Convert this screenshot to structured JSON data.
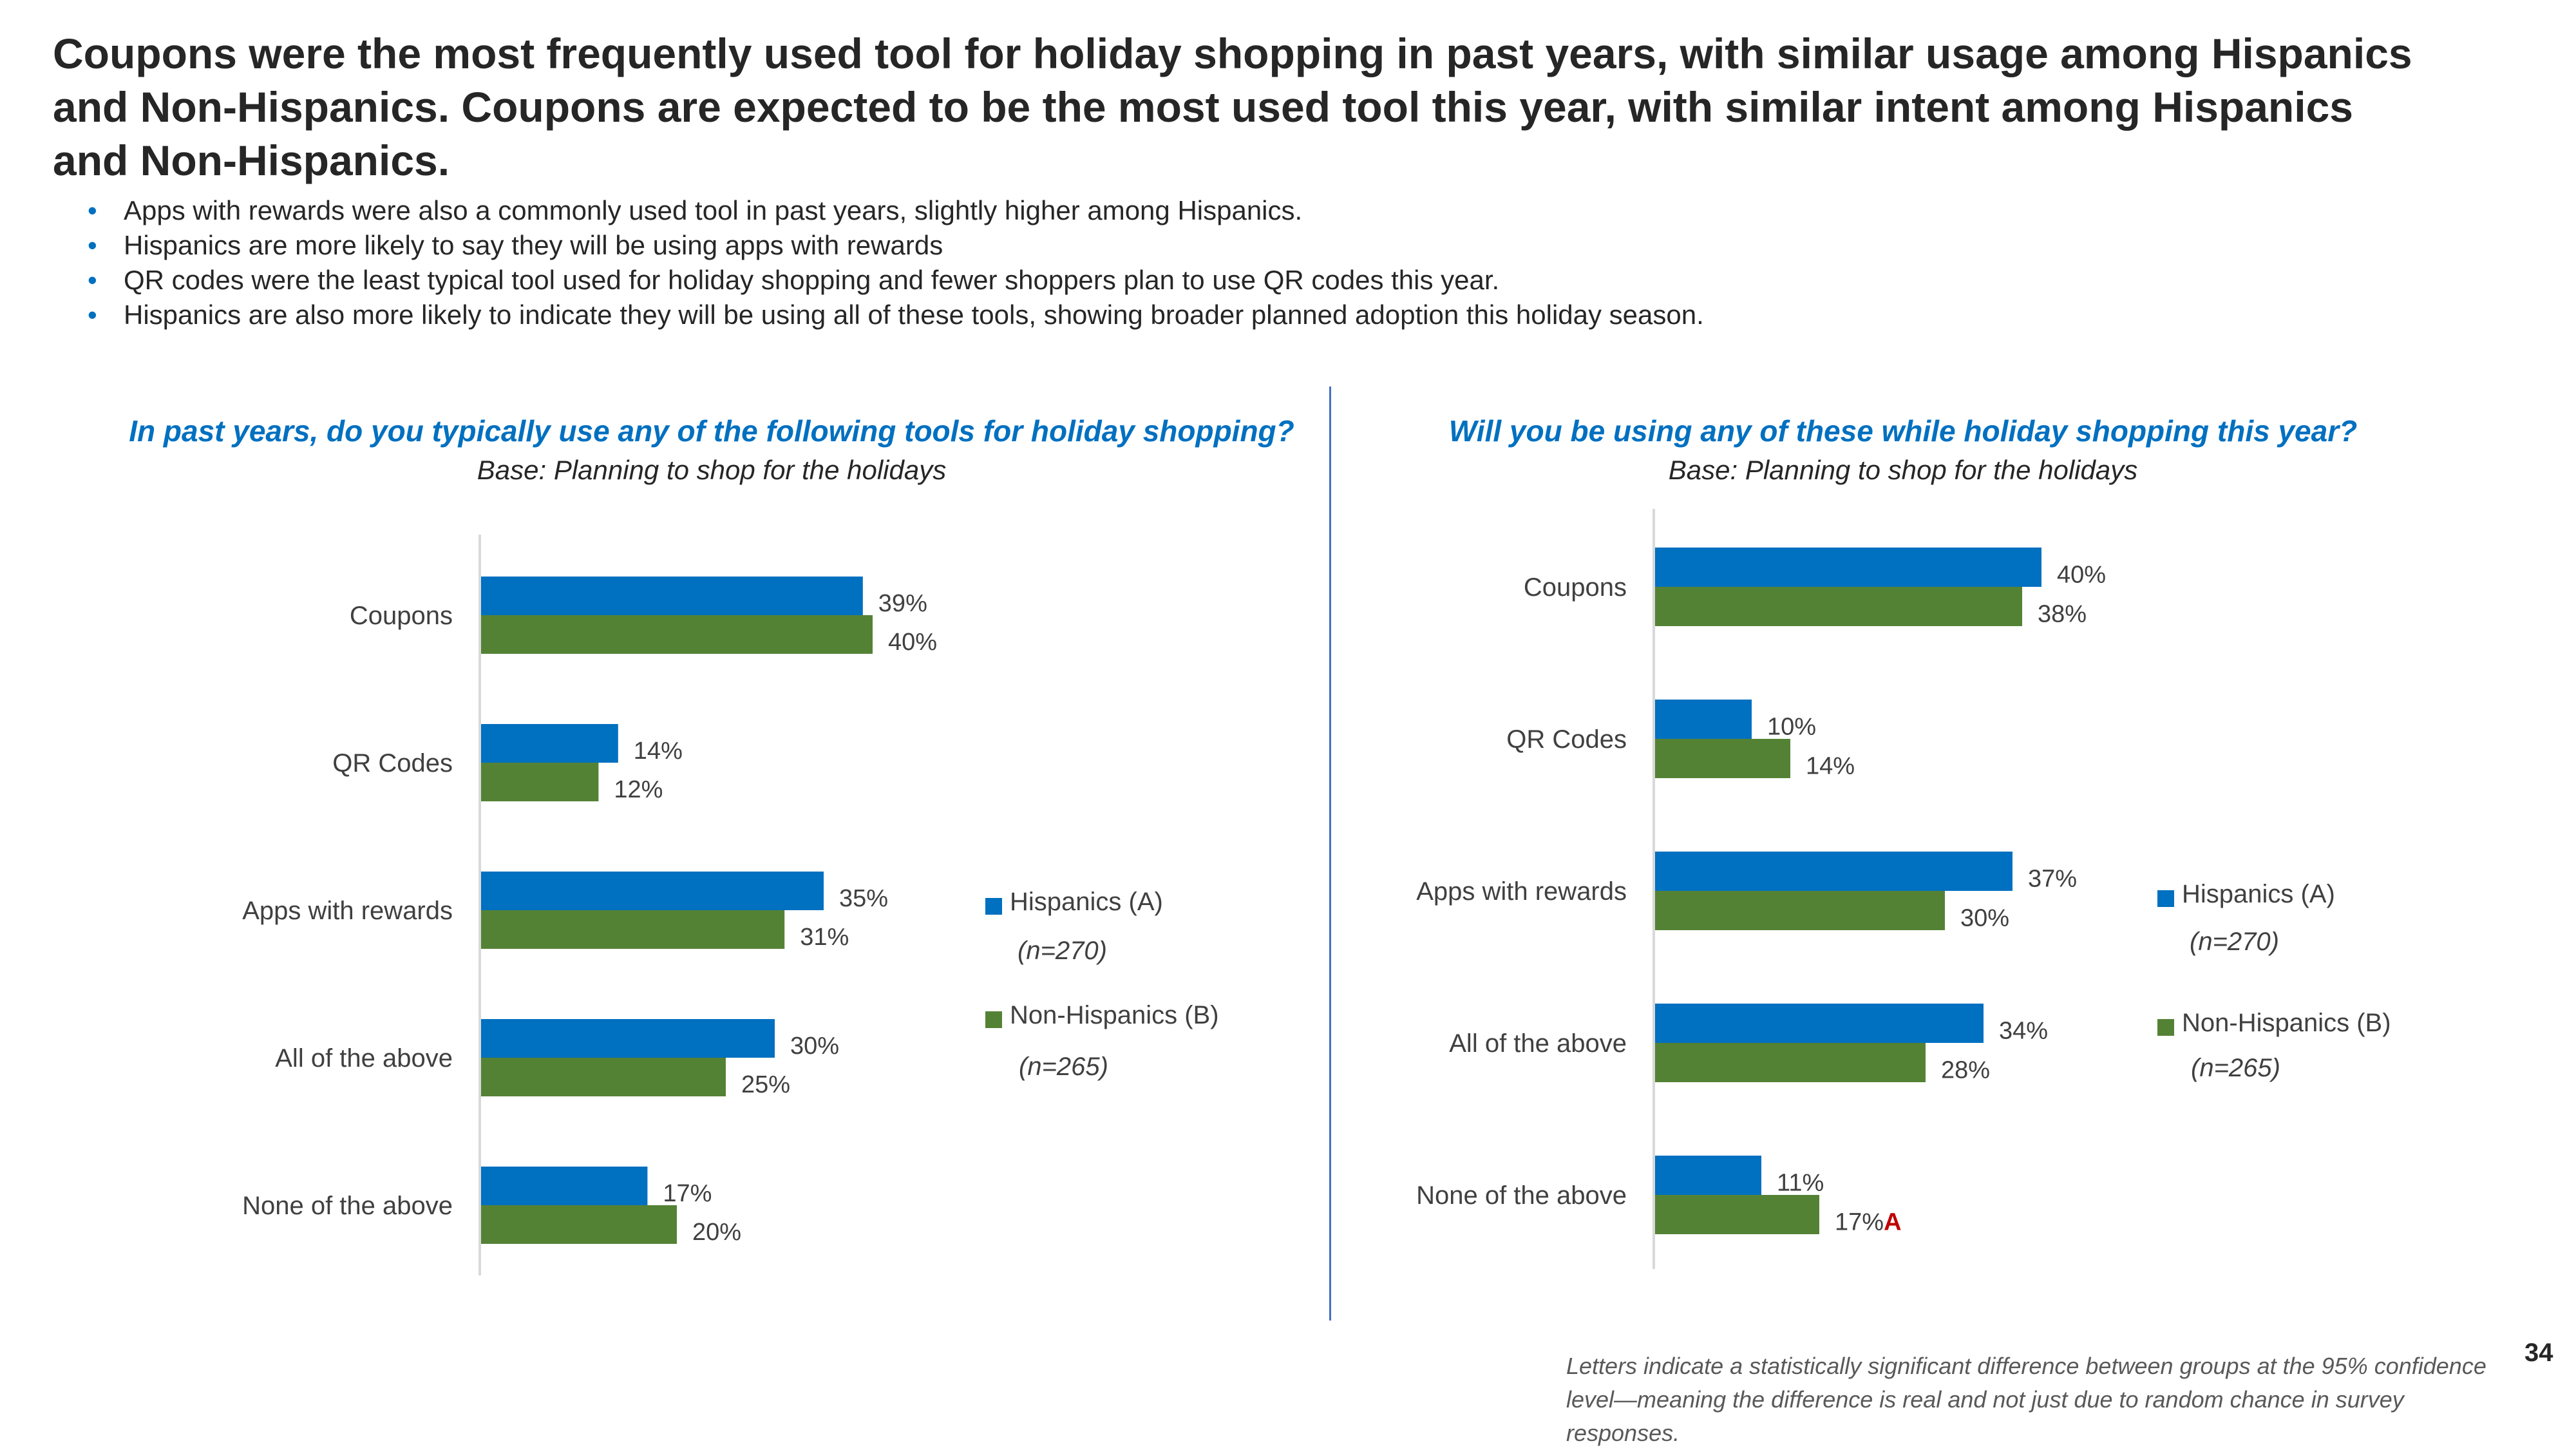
{
  "headline": "Coupons were the most frequently used tool for holiday shopping in past years, with similar usage among Hispanics and Non-Hispanics. Coupons are expected to be the most used tool this year, with similar intent among Hispanics and Non-Hispanics.",
  "bullets": [
    "Apps with rewards were also a commonly used tool in past years, slightly higher among Hispanics.",
    "Hispanics are more likely to say they will be using apps with rewards",
    "QR codes were the least typical tool used for holiday shopping and fewer shoppers plan to use QR codes this year.",
    "Hispanics are also more likely to indicate they will be using all of these tools, showing broader planned adoption this holiday season."
  ],
  "colors": {
    "hispanics": "#0070C0",
    "non_hispanics": "#548235",
    "significance": "#C00000",
    "title_blue": "#0070C0",
    "divider": "#4472C4"
  },
  "legend": {
    "series_a_label": "Hispanics (A)",
    "series_a_n": "(n=270)",
    "series_b_label": "Non-Hispanics (B)",
    "series_b_n": "(n=265)"
  },
  "footnote": "Letters indicate a statistically significant difference between groups at the 95% confidence level—meaning the difference is real and not just due to random chance in survey responses.",
  "page_number": "34",
  "chart_data": [
    {
      "type": "bar",
      "orientation": "horizontal",
      "title": "In past years, do you typically use any of the following tools for holiday shopping?",
      "subtitle": "Base: Planning to shop for the holidays",
      "categories": [
        "Coupons",
        "QR Codes",
        "Apps with rewards",
        "All of the above",
        "None of the above"
      ],
      "series": [
        {
          "name": "Hispanics (A)",
          "n": "(n=270)",
          "values": [
            39,
            14,
            35,
            30,
            17
          ],
          "labels": [
            "39%",
            "14%",
            "35%",
            "30%",
            "17%"
          ],
          "sig": [
            "",
            "",
            "",
            "",
            ""
          ]
        },
        {
          "name": "Non-Hispanics (B)",
          "n": "(n=265)",
          "values": [
            40,
            12,
            31,
            25,
            20
          ],
          "labels": [
            "40%",
            "12%",
            "31%",
            "25%",
            "20%"
          ],
          "sig": [
            "",
            "",
            "",
            "",
            ""
          ]
        }
      ],
      "xlim": [
        0,
        100
      ],
      "unit": "%",
      "grid": false,
      "legend_position": "right"
    },
    {
      "type": "bar",
      "orientation": "horizontal",
      "title": "Will you be using any of these while holiday shopping this year?",
      "subtitle": "Base: Planning to shop for the holidays",
      "categories": [
        "Coupons",
        "QR Codes",
        "Apps with rewards",
        "All of the above",
        "None of the above"
      ],
      "series": [
        {
          "name": "Hispanics (A)",
          "n": "(n=270)",
          "values": [
            40,
            10,
            37,
            34,
            11
          ],
          "labels": [
            "40%",
            "10%",
            "37%",
            "34%",
            "11%"
          ],
          "sig": [
            "",
            "",
            "",
            "",
            ""
          ]
        },
        {
          "name": "Non-Hispanics (B)",
          "n": "(n=265)",
          "values": [
            38,
            14,
            30,
            28,
            17
          ],
          "labels": [
            "38%",
            "14%",
            "30%",
            "28%",
            "17%"
          ],
          "sig": [
            "",
            "",
            "",
            "",
            "A"
          ]
        }
      ],
      "xlim": [
        0,
        100
      ],
      "unit": "%",
      "grid": false,
      "legend_position": "right"
    }
  ]
}
